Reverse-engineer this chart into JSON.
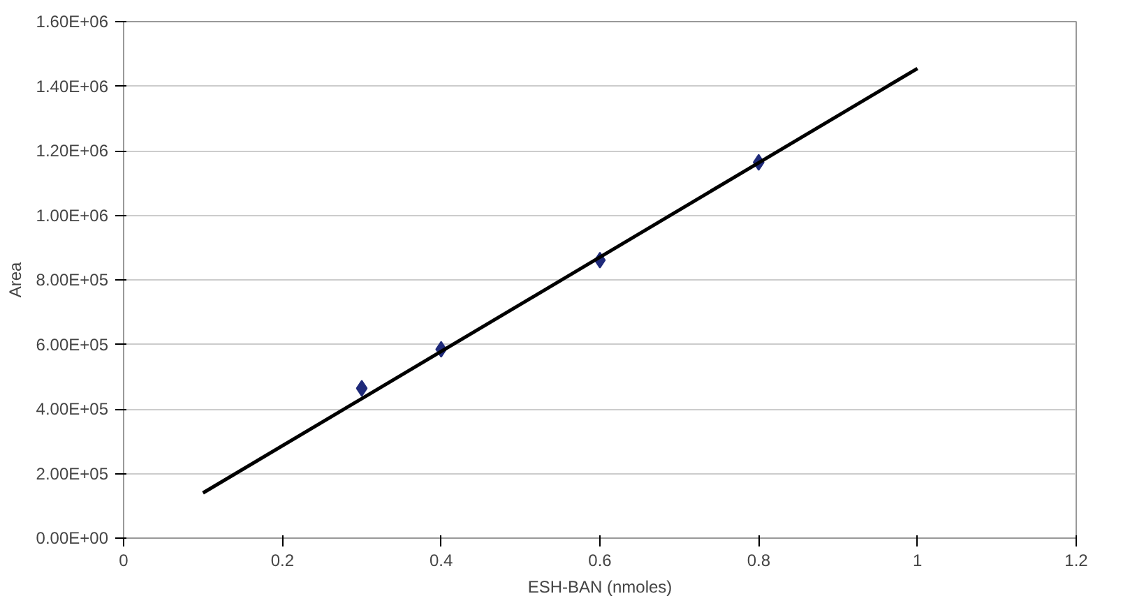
{
  "chart_data": {
    "type": "scatter",
    "xlabel": "ESH-BAN (nmoles)",
    "ylabel": "Area",
    "xlim": [
      0,
      1.2
    ],
    "xticks": [
      0,
      0.2,
      0.4,
      0.6,
      0.8,
      1,
      1.2
    ],
    "ylim": [
      0,
      1600000
    ],
    "yticks": [
      {
        "value": 0,
        "label": "0.00E+00"
      },
      {
        "value": 200000,
        "label": "2.00E+05"
      },
      {
        "value": 400000,
        "label": "4.00E+05"
      },
      {
        "value": 600000,
        "label": "6.00E+05"
      },
      {
        "value": 800000,
        "label": "8.00E+05"
      },
      {
        "value": 1000000,
        "label": "1.00E+06"
      },
      {
        "value": 1200000,
        "label": "1.20E+06"
      },
      {
        "value": 1400000,
        "label": "1.40E+06"
      },
      {
        "value": 1600000,
        "label": "1.60E+06"
      }
    ],
    "grid": "y",
    "series": [
      {
        "color": "#1f2a7a",
        "marker": "diamond",
        "x": [
          0.3,
          0.4,
          0.6,
          0.8
        ],
        "values": [
          464000,
          585000,
          861000,
          1164000
        ]
      },
      {
        "type": "line",
        "color": "#000000",
        "marker": "none",
        "line_style": "solid",
        "x": [
          0.1,
          1.0
        ],
        "values": [
          140000,
          1455000
        ]
      }
    ]
  }
}
